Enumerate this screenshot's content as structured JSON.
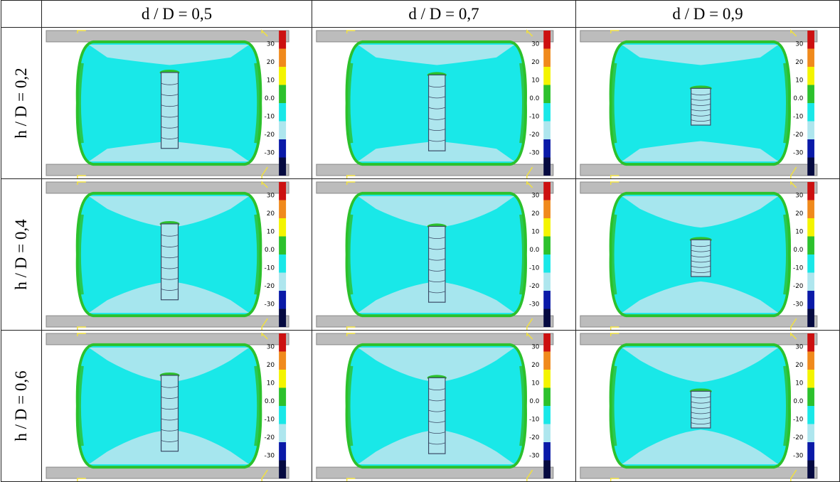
{
  "column_headers": [
    "d / D = 0,5",
    "d / D = 0,7",
    "d / D = 0,9"
  ],
  "row_headers": [
    "h / D = 0,2",
    "h / D = 0,4",
    "h / D = 0,6"
  ],
  "legend": {
    "labels": [
      "30",
      "20",
      "10",
      "0.0",
      "-10",
      "-20",
      "-30"
    ],
    "colors": [
      "#cc1010",
      "#f08a1c",
      "#f4f400",
      "#2cc12c",
      "#19e8e8",
      "#aee6ee",
      "#0a1aa8",
      "#050a40"
    ]
  },
  "colors": {
    "platen": "#bcbcbc",
    "body_main": "#19e8e8",
    "body_light": "#aee6ee",
    "edge_green": "#2cc12c",
    "hole_outline": "#3a4a66",
    "marker_yellow": "#f0e040"
  }
}
